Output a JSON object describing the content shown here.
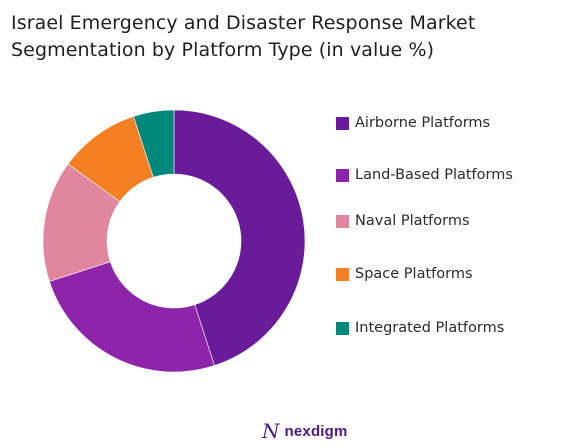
{
  "chart_data": {
    "type": "pie",
    "title_lines": [
      "Israel Emergency and Disaster Response Market",
      "Segmentation by Platform Type (in value %)"
    ],
    "categories": [
      "Airborne Platforms",
      "Land-Based Platforms",
      "Naval Platforms",
      "Space Platforms",
      "Integrated Platforms"
    ],
    "values": [
      45,
      25,
      15,
      10,
      5
    ],
    "colors": [
      "#6a1b9a",
      "#8e24aa",
      "#e0879f",
      "#f57f23",
      "#00897b"
    ],
    "donut": true,
    "legend_position": "right"
  },
  "brand": {
    "mark": "N",
    "name": "nexdigm"
  }
}
